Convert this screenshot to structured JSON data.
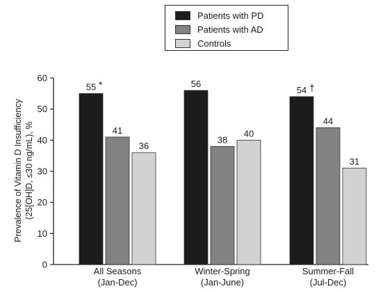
{
  "chart_data": {
    "type": "bar",
    "title": "",
    "xlabel": "",
    "ylabel_lines": [
      "Prevalence of Vitamin D Insufficiency",
      "(25[OH]D, ≤30 ng/mL), %"
    ],
    "ylim": [
      0,
      60
    ],
    "yticks": [
      0,
      10,
      20,
      30,
      40,
      50,
      60
    ],
    "categories": [
      {
        "line1": "All Seasons",
        "line2": "(Jan-Dec)"
      },
      {
        "line1": "Winter-Spring",
        "line2": "(Jan-June)"
      },
      {
        "line1": "Summer-Fall",
        "line2": "(Jul-Dec)"
      }
    ],
    "series": [
      {
        "name": "Patients with PD",
        "color": "#1c1c1c",
        "values": [
          55,
          56,
          54
        ],
        "marks": [
          "*",
          "",
          "†"
        ]
      },
      {
        "name": "Patients with AD",
        "color": "#828282",
        "values": [
          41,
          38,
          44
        ],
        "marks": [
          "",
          "",
          ""
        ]
      },
      {
        "name": "Controls",
        "color": "#d2d2d2",
        "values": [
          36,
          40,
          31
        ],
        "marks": [
          "",
          "",
          ""
        ]
      }
    ],
    "legend_position": "top-center",
    "grid": false
  }
}
